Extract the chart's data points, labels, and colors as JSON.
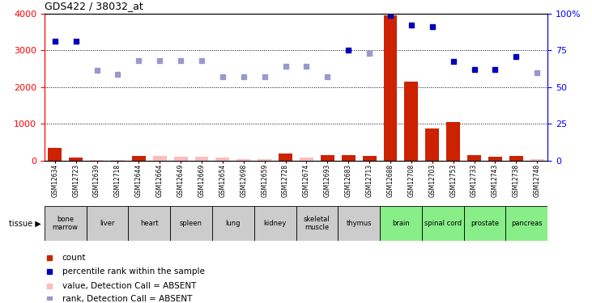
{
  "title": "GDS422 / 38032_at",
  "samples": [
    "GSM12634",
    "GSM12723",
    "GSM12639",
    "GSM12718",
    "GSM12644",
    "GSM12664",
    "GSM12649",
    "GSM12669",
    "GSM12654",
    "GSM12698",
    "GSM12659",
    "GSM12728",
    "GSM12674",
    "GSM12693",
    "GSM12683",
    "GSM12713",
    "GSM12688",
    "GSM12708",
    "GSM12703",
    "GSM12753",
    "GSM12733",
    "GSM12743",
    "GSM12738",
    "GSM12748"
  ],
  "count_values": [
    350,
    90,
    25,
    20,
    130,
    120,
    110,
    115,
    80,
    35,
    35,
    190,
    80,
    140,
    150,
    130,
    3950,
    2150,
    880,
    1060,
    140,
    115,
    130,
    45
  ],
  "count_absent": [
    false,
    false,
    true,
    true,
    false,
    true,
    true,
    true,
    true,
    true,
    true,
    false,
    true,
    false,
    false,
    false,
    false,
    false,
    false,
    false,
    false,
    false,
    false,
    true
  ],
  "rank_values": [
    3250,
    3250,
    2450,
    2350,
    2720,
    2720,
    2720,
    2720,
    2280,
    2280,
    2280,
    2570,
    2570,
    2280,
    3000,
    2920,
    3950,
    3700,
    3650,
    2700,
    2480,
    2480,
    2830,
    2400
  ],
  "rank_absent": [
    false,
    false,
    true,
    true,
    true,
    true,
    true,
    true,
    true,
    true,
    true,
    true,
    true,
    true,
    false,
    true,
    false,
    false,
    false,
    false,
    false,
    false,
    false,
    true
  ],
  "tissues": [
    {
      "name": "bone\nmarrow",
      "start": 0,
      "end": 2,
      "green": false
    },
    {
      "name": "liver",
      "start": 2,
      "end": 4,
      "green": false
    },
    {
      "name": "heart",
      "start": 4,
      "end": 6,
      "green": false
    },
    {
      "name": "spleen",
      "start": 6,
      "end": 8,
      "green": false
    },
    {
      "name": "lung",
      "start": 8,
      "end": 10,
      "green": false
    },
    {
      "name": "kidney",
      "start": 10,
      "end": 12,
      "green": false
    },
    {
      "name": "skeletal\nmuscle",
      "start": 12,
      "end": 14,
      "green": false
    },
    {
      "name": "thymus",
      "start": 14,
      "end": 16,
      "green": false
    },
    {
      "name": "brain",
      "start": 16,
      "end": 18,
      "green": true
    },
    {
      "name": "spinal cord",
      "start": 18,
      "end": 20,
      "green": true
    },
    {
      "name": "prostate",
      "start": 20,
      "end": 22,
      "green": true
    },
    {
      "name": "pancreas",
      "start": 22,
      "end": 24,
      "green": true
    }
  ],
  "ylim": [
    0,
    4000
  ],
  "y2lim": [
    0,
    100
  ],
  "yticks": [
    0,
    1000,
    2000,
    3000,
    4000
  ],
  "y2ticks": [
    0,
    25,
    50,
    75,
    100
  ],
  "bar_color_present": "#cc2200",
  "bar_color_absent": "#ffbbbb",
  "rank_color_present": "#0000bb",
  "rank_color_absent": "#9999cc",
  "tissue_green": "#88ee88",
  "tissue_gray": "#cccccc",
  "legend_items": [
    {
      "color": "#cc2200",
      "label": "count"
    },
    {
      "color": "#0000bb",
      "label": "percentile rank within the sample"
    },
    {
      "color": "#ffbbbb",
      "label": "value, Detection Call = ABSENT"
    },
    {
      "color": "#9999cc",
      "label": "rank, Detection Call = ABSENT"
    }
  ]
}
